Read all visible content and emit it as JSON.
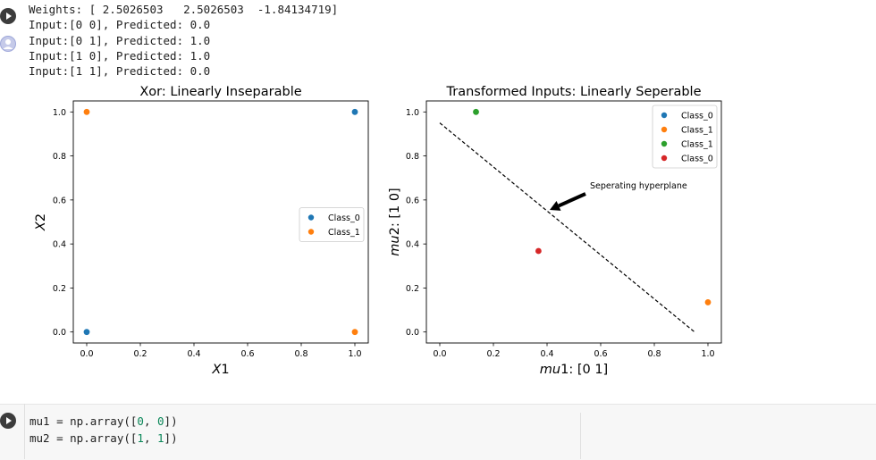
{
  "output": {
    "lines": [
      "Weights: [ 2.5026503   2.5026503  -1.84134719]",
      "Input:[0 0], Predicted: 0.0",
      "Input:[0 1], Predicted: 1.0",
      "Input:[1 0], Predicted: 1.0",
      "Input:[1 1], Predicted: 0.0"
    ]
  },
  "colors": {
    "class0_blue": "#1f77b4",
    "class1_orange": "#ff7f0e",
    "class1_green": "#2ca02c",
    "class0_red": "#d62728"
  },
  "chart_data": [
    {
      "type": "scatter",
      "title": "Xor: Linearly Inseparable",
      "xlabel": "X1",
      "ylabel": "X2",
      "xlim": [
        -0.05,
        1.05
      ],
      "ylim": [
        -0.05,
        1.05
      ],
      "xticks": [
        "0.0",
        "0.2",
        "0.4",
        "0.6",
        "0.8",
        "1.0"
      ],
      "yticks": [
        "0.0",
        "0.2",
        "0.4",
        "0.6",
        "0.8",
        "1.0"
      ],
      "legend_position": "center-right",
      "series": [
        {
          "name": "Class_0",
          "color": "#1f77b4",
          "points": [
            [
              0,
              0
            ],
            [
              1,
              1
            ]
          ]
        },
        {
          "name": "Class_1",
          "color": "#ff7f0e",
          "points": [
            [
              0,
              1
            ],
            [
              1,
              0
            ]
          ]
        }
      ]
    },
    {
      "type": "scatter",
      "title": "Transformed Inputs: Linearly Seperable",
      "xlabel": "mu1: [0 1]",
      "ylabel": "mu2: [1 0]",
      "xlim": [
        -0.05,
        1.05
      ],
      "ylim": [
        -0.05,
        1.05
      ],
      "xticks": [
        "0.0",
        "0.2",
        "0.4",
        "0.6",
        "0.8",
        "1.0"
      ],
      "yticks": [
        "0.0",
        "0.2",
        "0.4",
        "0.6",
        "0.8",
        "1.0"
      ],
      "legend_position": "top-right",
      "series": [
        {
          "name": "Class_0",
          "color": "#1f77b4",
          "points": []
        },
        {
          "name": "Class_1",
          "color": "#ff7f0e",
          "points": [
            [
              1.0,
              0.135
            ]
          ]
        },
        {
          "name": "Class_1",
          "color": "#2ca02c",
          "points": [
            [
              0.135,
              1.0
            ]
          ]
        },
        {
          "name": "Class_0",
          "color": "#d62728",
          "points": [
            [
              0.368,
              0.368
            ]
          ]
        }
      ],
      "line": {
        "style": "dashed",
        "from": [
          0.0,
          0.95
        ],
        "to": [
          0.95,
          0.0
        ]
      },
      "annotation": {
        "text": "Seperating hyperplane",
        "xy": [
          0.41,
          0.555
        ],
        "xytext": [
          0.55,
          0.64
        ]
      }
    }
  ],
  "next_cell": {
    "code_lines": [
      [
        "mu1 = np.array([",
        "0",
        ", ",
        "0",
        "])"
      ],
      [
        "mu2 = np.array([",
        "1",
        ", ",
        "1",
        "])"
      ]
    ]
  }
}
